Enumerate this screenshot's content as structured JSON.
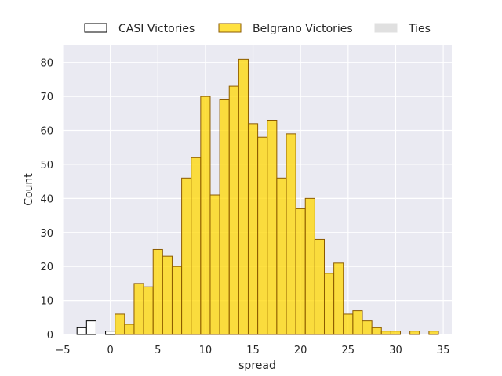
{
  "chart_data": {
    "type": "bar",
    "xlabel": "spread",
    "ylabel": "Count",
    "xlim": [
      -5.0,
      35.9
    ],
    "ylim": [
      0,
      85
    ],
    "xticks": [
      -5,
      0,
      5,
      10,
      15,
      20,
      25,
      30,
      35
    ],
    "yticks": [
      0,
      10,
      20,
      30,
      40,
      50,
      60,
      70,
      80
    ],
    "grid": true,
    "legend_position": "top-center",
    "bin_width": 1,
    "series": [
      {
        "name": "CASI Victories",
        "fill": "#ffffff",
        "stroke": "#000000",
        "bins": [
          {
            "start": -3.5,
            "count": 2
          },
          {
            "start": -2.5,
            "count": 4
          },
          {
            "start": -0.5,
            "count": 1
          }
        ]
      },
      {
        "name": "Belgrano Victories",
        "fill": "#ffd700",
        "stroke": "#8b5a00",
        "bins": [
          {
            "start": 0.5,
            "count": 6
          },
          {
            "start": 1.5,
            "count": 3
          },
          {
            "start": 2.5,
            "count": 15
          },
          {
            "start": 3.5,
            "count": 14
          },
          {
            "start": 4.5,
            "count": 25
          },
          {
            "start": 5.5,
            "count": 23
          },
          {
            "start": 6.5,
            "count": 20
          },
          {
            "start": 7.5,
            "count": 46
          },
          {
            "start": 8.5,
            "count": 52
          },
          {
            "start": 9.5,
            "count": 70
          },
          {
            "start": 10.5,
            "count": 41
          },
          {
            "start": 11.5,
            "count": 69
          },
          {
            "start": 12.5,
            "count": 73
          },
          {
            "start": 13.5,
            "count": 81
          },
          {
            "start": 14.5,
            "count": 62
          },
          {
            "start": 15.5,
            "count": 58
          },
          {
            "start": 16.5,
            "count": 63
          },
          {
            "start": 17.5,
            "count": 46
          },
          {
            "start": 18.5,
            "count": 59
          },
          {
            "start": 19.5,
            "count": 37
          },
          {
            "start": 20.5,
            "count": 40
          },
          {
            "start": 21.5,
            "count": 28
          },
          {
            "start": 22.5,
            "count": 18
          },
          {
            "start": 23.5,
            "count": 21
          },
          {
            "start": 24.5,
            "count": 6
          },
          {
            "start": 25.5,
            "count": 7
          },
          {
            "start": 26.5,
            "count": 4
          },
          {
            "start": 27.5,
            "count": 2
          },
          {
            "start": 28.5,
            "count": 1
          },
          {
            "start": 29.5,
            "count": 1
          },
          {
            "start": 31.5,
            "count": 1
          },
          {
            "start": 33.5,
            "count": 1
          }
        ]
      },
      {
        "name": "Ties",
        "fill": "#e0e0e0",
        "stroke": "#e0e0e0",
        "bins": []
      }
    ]
  }
}
